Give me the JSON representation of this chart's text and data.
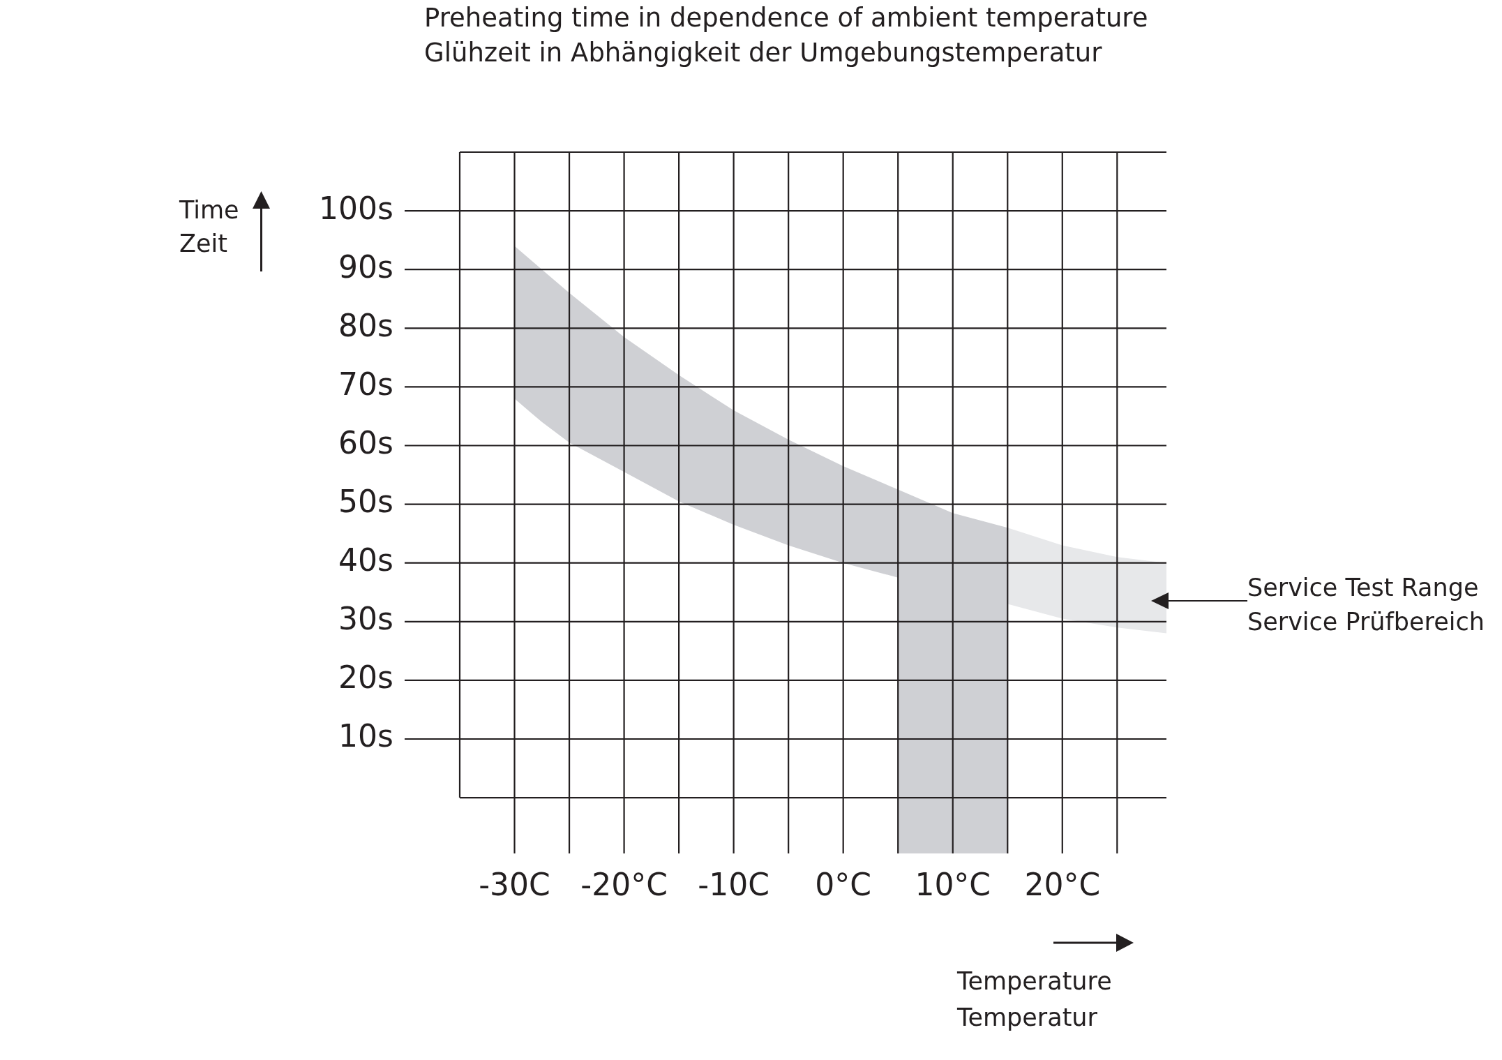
{
  "chart_data": {
    "type": "line",
    "title": "Preheating time in dependence of ambient temperature",
    "subtitle": "Glühzeit in Abhängigkeit der Umgebungstemperatur",
    "xlabel": "Temperature\nTemperatur",
    "ylabel": "Time\nZeit",
    "xlim": [
      -35,
      29.5
    ],
    "ylim": [
      -9.5,
      110
    ],
    "xticks": [
      {
        "value": -30,
        "label": "-30C"
      },
      {
        "value": -25,
        "label": null
      },
      {
        "value": -20,
        "label": "-20°C"
      },
      {
        "value": -15,
        "label": null
      },
      {
        "value": -10,
        "label": "-10C"
      },
      {
        "value": -5,
        "label": null
      },
      {
        "value": 0,
        "label": "0°C"
      },
      {
        "value": 5,
        "label": null
      },
      {
        "value": 10,
        "label": "10°C"
      },
      {
        "value": 15,
        "label": null
      },
      {
        "value": 20,
        "label": "20°C"
      },
      {
        "value": 25,
        "label": null
      }
    ],
    "yticks": [
      {
        "value": 0,
        "label": null
      },
      {
        "value": 10,
        "label": "10s"
      },
      {
        "value": 20,
        "label": "20s"
      },
      {
        "value": 30,
        "label": "30s"
      },
      {
        "value": 40,
        "label": "40s"
      },
      {
        "value": 50,
        "label": "50s"
      },
      {
        "value": 60,
        "label": "60s"
      },
      {
        "value": 70,
        "label": "70s"
      },
      {
        "value": 80,
        "label": "80s"
      },
      {
        "value": 90,
        "label": "90s"
      },
      {
        "value": 100,
        "label": "100s"
      }
    ],
    "grid": true,
    "series": [
      {
        "color": "#cfd0d4",
        "x": [
          -30,
          -27.5,
          -25,
          -20,
          -15,
          -10,
          -5,
          0,
          5,
          5,
          10,
          15
        ],
        "values": [
          null,
          null,
          null,
          null,
          null,
          null,
          null,
          null,
          null,
          null,
          null,
          null
        ],
        "upper": [
          94,
          90,
          86,
          78.5,
          72,
          66,
          61,
          56.5,
          52.5,
          52.5,
          48.5,
          46
        ],
        "lower": [
          68,
          64,
          60.5,
          55.5,
          50.5,
          46.5,
          43,
          40,
          37.5,
          -9.5,
          -9.5,
          -9.5
        ]
      },
      {
        "color": "#e7e8ea",
        "x": [
          15,
          20,
          25,
          29.5
        ],
        "values": [
          null,
          null,
          null,
          null
        ],
        "upper": [
          46,
          43,
          41,
          40
        ],
        "lower": [
          33,
          30.5,
          29,
          28
        ]
      }
    ],
    "annotations": [
      "Service Test Range\nService Prüfbereich"
    ]
  }
}
